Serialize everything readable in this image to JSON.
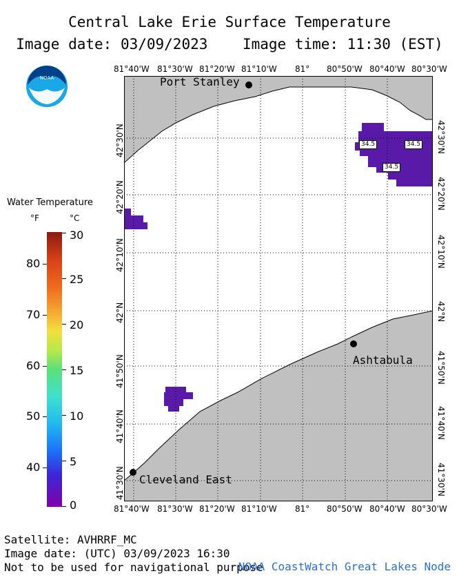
{
  "title": "Central Lake Erie Surface Temperature",
  "image_date_line": "Image date: 03/09/2023    Image time: 11:30 (EST)",
  "logo_text": "NOAA",
  "longitude_labels": [
    "81°40'W",
    "81°30'W",
    "81°20'W",
    "81°10'W",
    "81°",
    "80°50'W",
    "80°40'W",
    "80°30'W"
  ],
  "latitude_labels": [
    "42°30'N",
    "42°20'N",
    "42°10'N",
    "42°N",
    "41°50'N",
    "41°40'N",
    "41°30'N"
  ],
  "places": {
    "port_stanley": "Port Stanley",
    "ashtabula": "Ashtabula",
    "cleveland_east": "Cleveland East"
  },
  "sst_labels": [
    "34.5",
    "34.5",
    "34.5"
  ],
  "legend": {
    "title": "Water Temperature",
    "unit_f": "°F",
    "unit_c": "°C",
    "f_ticks": [
      "80",
      "70",
      "60",
      "50",
      "40"
    ],
    "c_ticks": [
      "30",
      "25",
      "20",
      "15",
      "10",
      "5",
      "0"
    ]
  },
  "footer": {
    "satellite": "Satellite: AVHRRF_MC",
    "utc_date": "Image date: (UTC) 03/09/2023  16:30",
    "disclaimer": "Not to be used for navigational purpose",
    "credit": "NOAA CoastWatch Great Lakes Node"
  },
  "colors": {
    "land": "#c0c0c0",
    "water": "#ffffff",
    "cold_water": "#5a1aa8",
    "credit": "#2a6fd6"
  }
}
